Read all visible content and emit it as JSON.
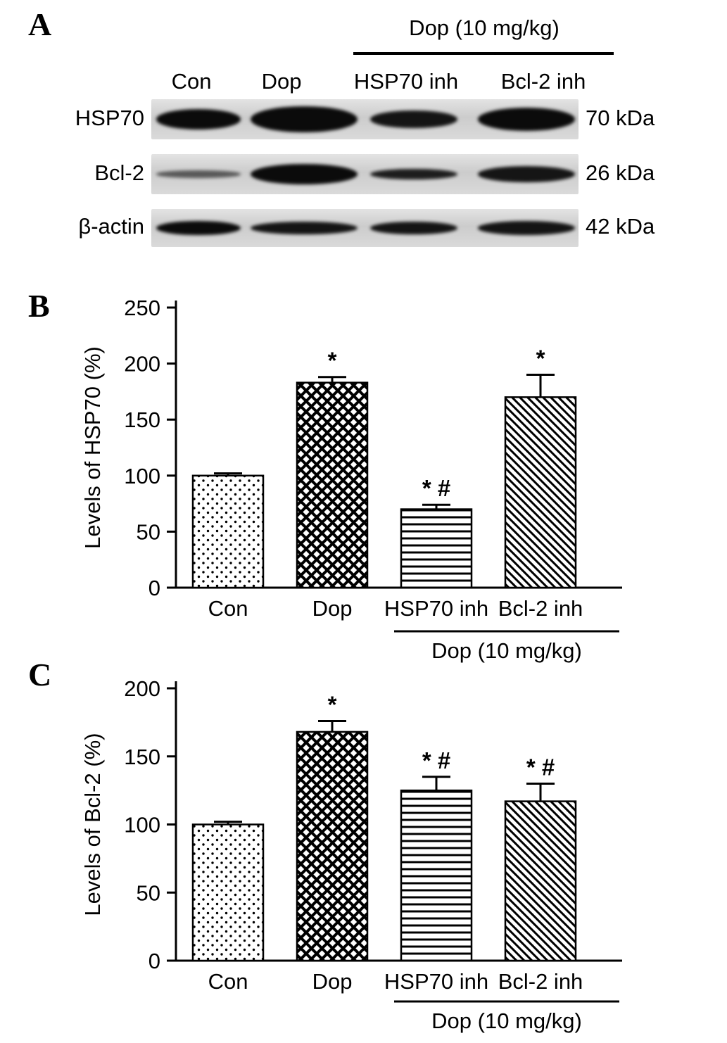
{
  "panels": {
    "a": {
      "label": "A",
      "treatment_header": "Dop (10 mg/kg)",
      "lane_labels": [
        "Con",
        "Dop",
        "HSP70 inh",
        "Bcl-2 inh"
      ],
      "blot_rows": [
        {
          "protein": "HSP70",
          "weight": "70 kDa",
          "band_height": [
            0.5,
            0.66,
            0.45,
            0.58
          ],
          "band_intensity": [
            1,
            1,
            0.95,
            1
          ]
        },
        {
          "protein": "Bcl-2",
          "weight": "26 kDa",
          "band_height": [
            0.18,
            0.52,
            0.28,
            0.4
          ],
          "band_intensity": [
            0.6,
            1,
            0.9,
            0.95
          ]
        },
        {
          "protein": "β-actin",
          "weight": "42 kDa",
          "band_height": [
            0.38,
            0.34,
            0.34,
            0.36
          ],
          "band_intensity": [
            1,
            0.95,
            0.95,
            0.95
          ]
        }
      ]
    },
    "b": {
      "label": "B"
    },
    "c": {
      "label": "C"
    }
  },
  "chart_data": [
    {
      "id": "hsp70",
      "panel": "B",
      "type": "bar",
      "categories": [
        "Con",
        "Dop",
        "HSP70 inh",
        "Bcl-2 inh"
      ],
      "values": [
        100,
        183,
        70,
        170
      ],
      "errors": [
        2,
        5,
        4,
        20
      ],
      "annotations": [
        "",
        "*",
        "* #",
        "*"
      ],
      "title": "",
      "xlabel": "",
      "ylabel": "Levels of HSP70 (%)",
      "ylim": [
        0,
        250
      ],
      "yticks": [
        0,
        50,
        100,
        150,
        200,
        250
      ],
      "grid": false,
      "legend": "none",
      "group_label": "Dop (10 mg/kg)",
      "group_span_categories": [
        "HSP70 inh",
        "Bcl-2 inh"
      ],
      "patterns": [
        "dots",
        "crosshatch",
        "hlines",
        "diag"
      ]
    },
    {
      "id": "bcl2",
      "panel": "C",
      "type": "bar",
      "categories": [
        "Con",
        "Dop",
        "HSP70 inh",
        "Bcl-2 inh"
      ],
      "values": [
        100,
        168,
        125,
        117
      ],
      "errors": [
        2,
        8,
        10,
        13
      ],
      "annotations": [
        "",
        "*",
        "* #",
        "* #"
      ],
      "title": "",
      "xlabel": "",
      "ylabel": "Levels of Bcl-2 (%)",
      "ylim": [
        0,
        200
      ],
      "yticks": [
        0,
        50,
        100,
        150,
        200
      ],
      "grid": false,
      "legend": "none",
      "group_label": "Dop (10 mg/kg)",
      "group_span_categories": [
        "HSP70 inh",
        "Bcl-2 inh"
      ],
      "patterns": [
        "dots",
        "crosshatch",
        "hlines",
        "diag"
      ]
    }
  ]
}
